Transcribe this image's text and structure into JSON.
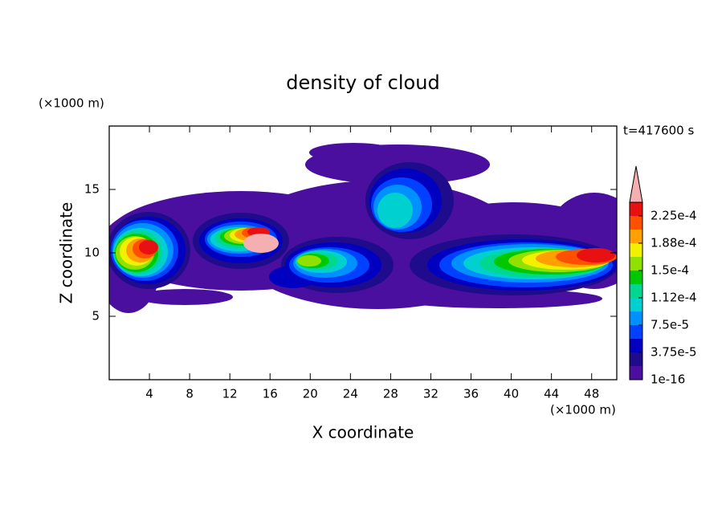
{
  "chart_data": {
    "type": "contour",
    "title": "density of cloud",
    "x_label": "X coordinate",
    "y_label": "Z coordinate",
    "x_unit": "(×1000 m)",
    "y_unit": "(×1000 m)",
    "annotation": "t=417600 s",
    "xlim": [
      0,
      50.5
    ],
    "ylim": [
      0,
      20
    ],
    "xticks": [
      4,
      8,
      12,
      16,
      20,
      24,
      28,
      32,
      36,
      40,
      44,
      48
    ],
    "yticks": [
      5,
      10,
      15
    ],
    "colorbar": {
      "levels": [
        1e-16,
        1.875e-05,
        3.75e-05,
        5.625e-05,
        7.5e-05,
        9.375e-05,
        0.0001125,
        0.00013125,
        0.00015,
        0.00016875,
        0.0001875,
        0.00020625,
        0.000225,
        0.00024375
      ],
      "ticks": [
        {
          "value": 1e-16,
          "label": "1e-16"
        },
        {
          "value": 3.75e-05,
          "label": "3.75e-5"
        },
        {
          "value": 7.5e-05,
          "label": "7.5e-5"
        },
        {
          "value": 0.0001125,
          "label": "1.12e-4"
        },
        {
          "value": 0.00015,
          "label": "1.5e-4"
        },
        {
          "value": 0.0001875,
          "label": "1.88e-4"
        },
        {
          "value": 0.000225,
          "label": "2.25e-4"
        }
      ],
      "colors": [
        "#4a0f9e",
        "#1e0c8c",
        "#0000c0",
        "#0040ff",
        "#0090ff",
        "#00d0d0",
        "#00d890",
        "#00c800",
        "#90e000",
        "#f0f000",
        "#ffa000",
        "#ff5000",
        "#e81010"
      ],
      "over_color": "#f4b0b0"
    }
  }
}
